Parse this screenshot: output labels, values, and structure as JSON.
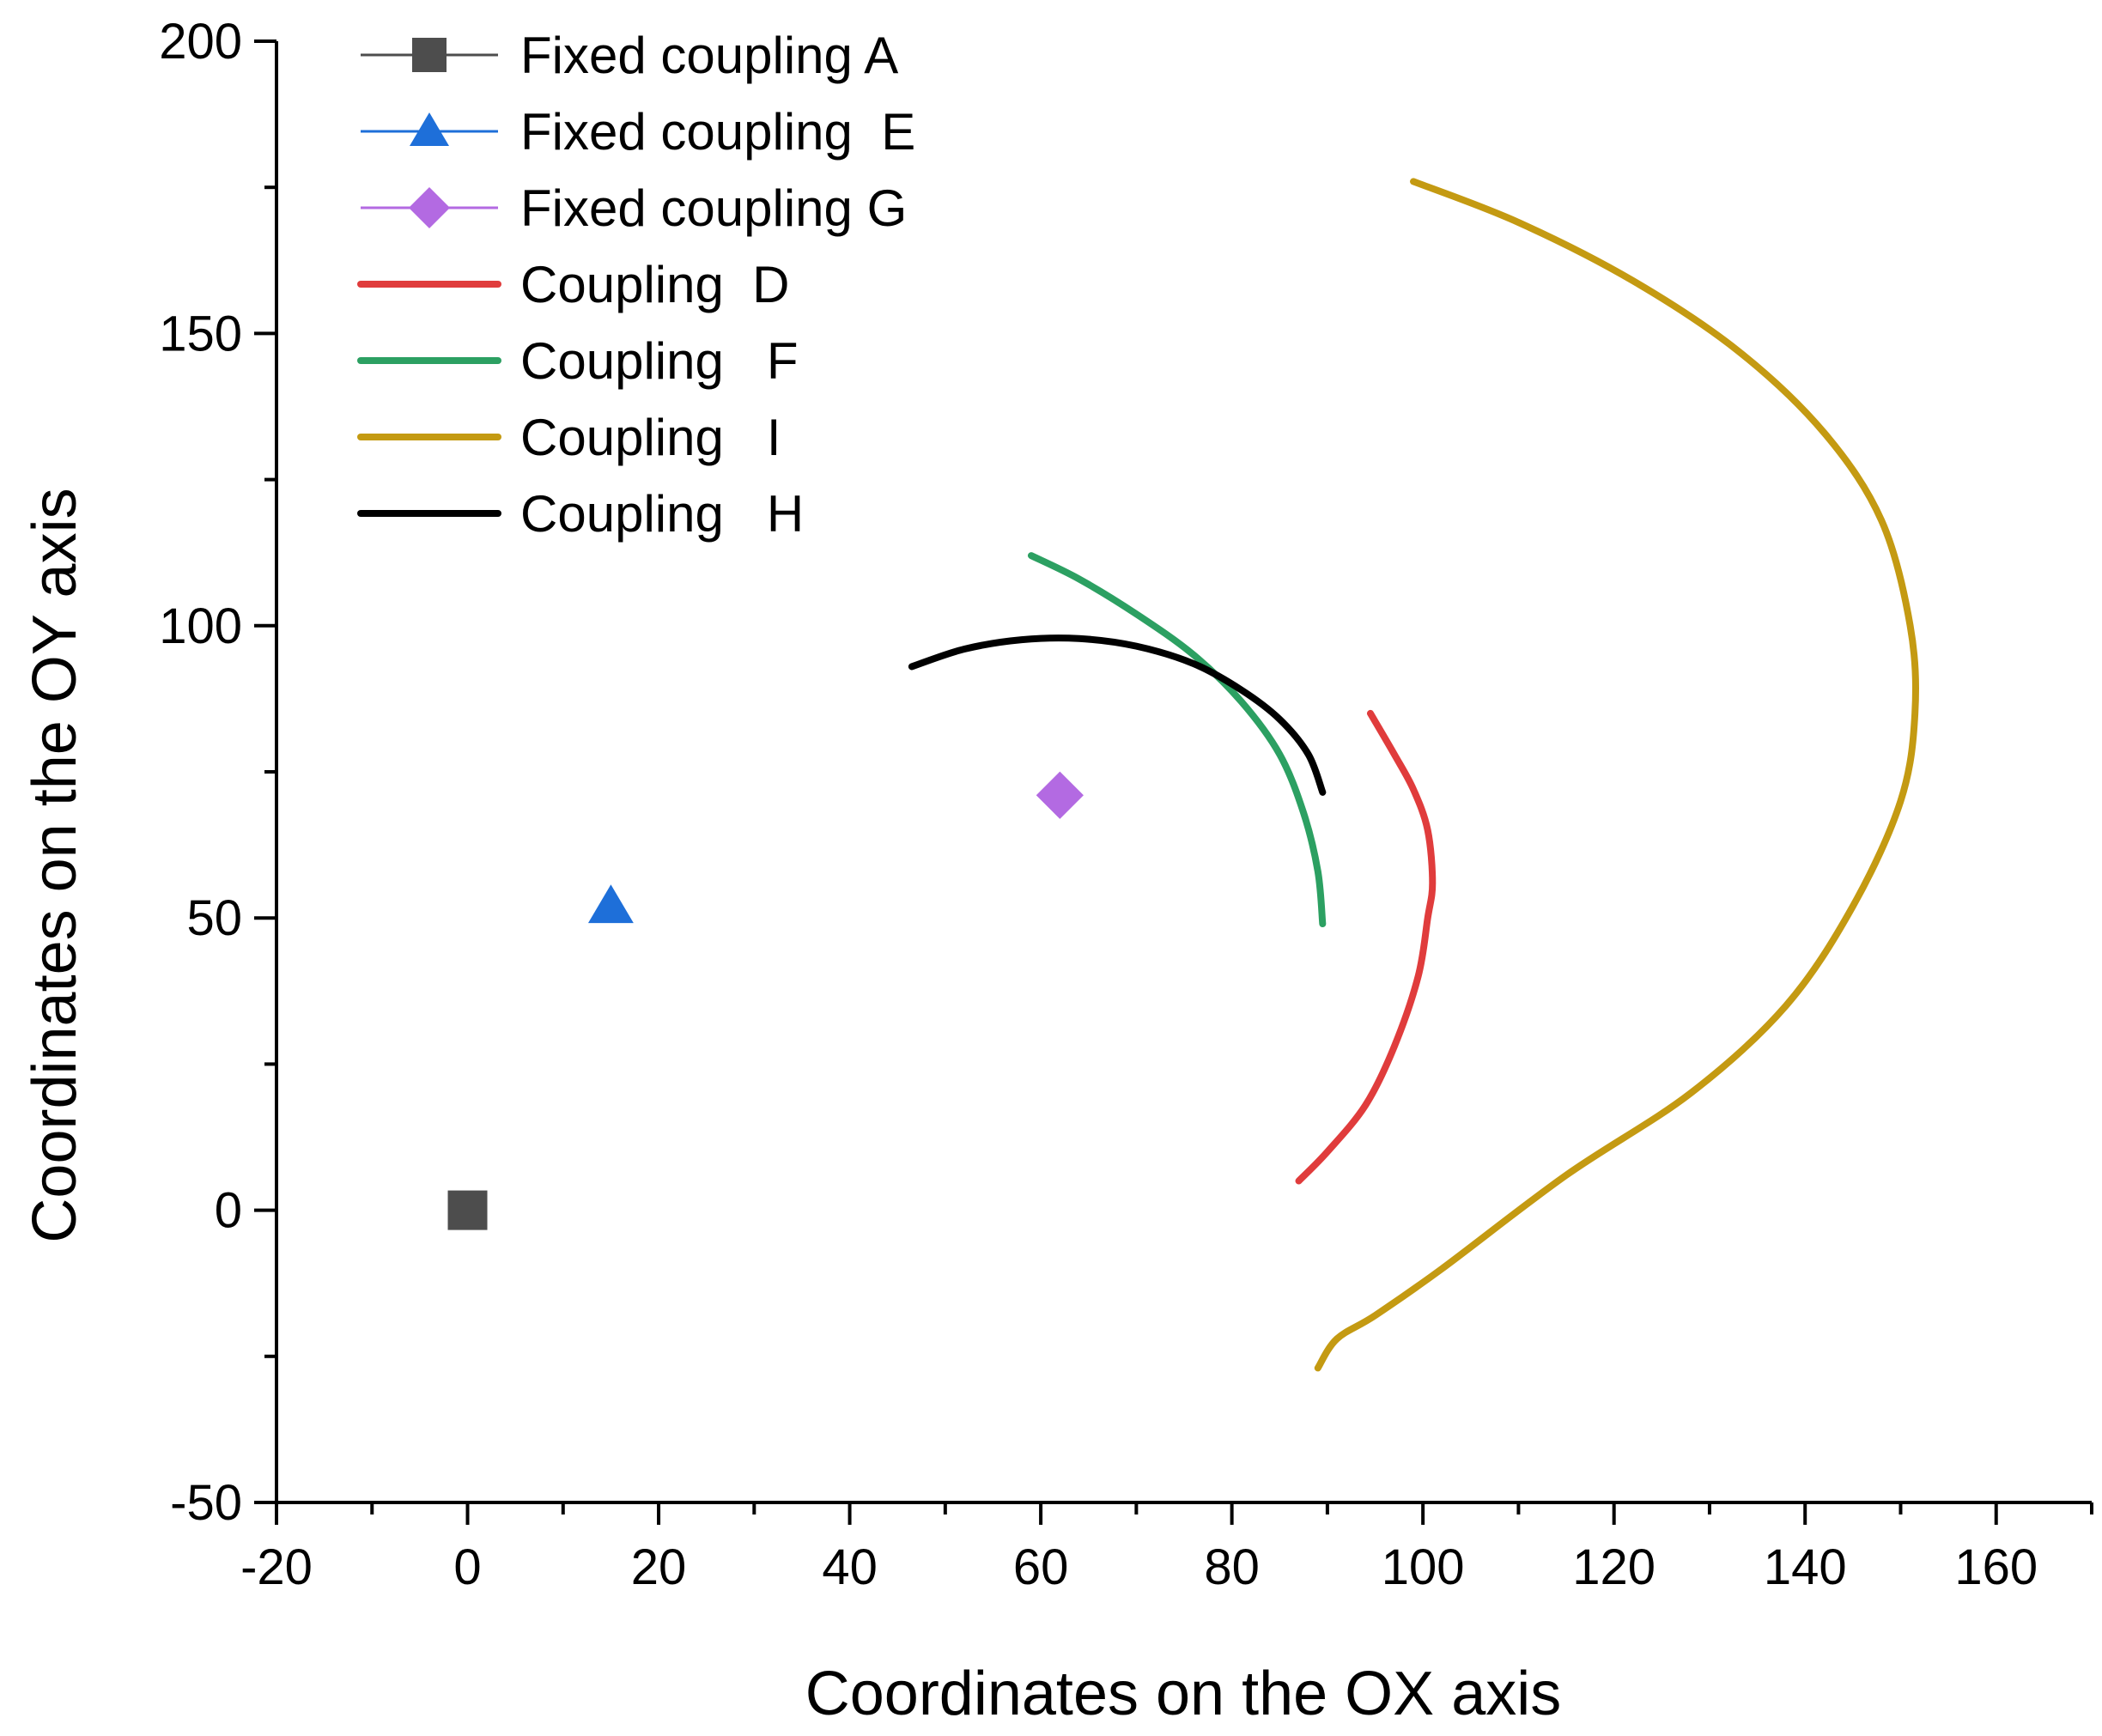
{
  "chart_data": {
    "type": "scatter",
    "xlabel": "Coordinates on the OX axis",
    "ylabel": "Coordinates on the OY axis",
    "xlim": [
      -20,
      170
    ],
    "ylim": [
      -50,
      200
    ],
    "xticks": [
      -20,
      0,
      20,
      40,
      60,
      80,
      100,
      120,
      140,
      160
    ],
    "yticks": [
      -50,
      0,
      50,
      100,
      150,
      200
    ],
    "xtick_labels": [
      "-20",
      "0",
      "20",
      "40",
      "60",
      "80",
      "100",
      "120",
      "140",
      "160"
    ],
    "ytick_labels": [
      "-50",
      "0",
      "50",
      "100",
      "150",
      "200"
    ],
    "grid": false,
    "legend_position": "top-left",
    "series": [
      {
        "name": "Fixed coupling A",
        "kind": "point",
        "marker": "square",
        "color": "#4d4d4d",
        "x": [
          0
        ],
        "y": [
          0
        ]
      },
      {
        "name": "Fixed coupling  E",
        "kind": "point",
        "marker": "triangle",
        "color": "#1e6fd9",
        "x": [
          15
        ],
        "y": [
          52
        ]
      },
      {
        "name": "Fixed coupling G",
        "kind": "point",
        "marker": "diamond",
        "color": "#b36ae2",
        "x": [
          62
        ],
        "y": [
          71
        ]
      },
      {
        "name": "Coupling  D",
        "kind": "line",
        "color": "#e03c3c",
        "x": [
          87,
          90,
          94,
          97,
          99.5,
          100.5,
          101,
          100.5,
          99,
          97,
          94.5
        ],
        "y": [
          5,
          10,
          18,
          28,
          40,
          50,
          56,
          65,
          72,
          78,
          85
        ]
      },
      {
        "name": "Coupling   F",
        "kind": "line",
        "color": "#2ca062",
        "x": [
          59,
          64,
          70,
          76,
          81,
          85,
          87.5,
          89,
          89.5
        ],
        "y": [
          112,
          108,
          102,
          95,
          87,
          78,
          68,
          58,
          49
        ]
      },
      {
        "name": "Coupling   I",
        "kind": "line",
        "color": "#c49a12",
        "x": [
          99,
          110,
          122,
          133,
          142,
          148,
          151,
          151.5,
          150,
          145,
          138,
          128,
          115,
          102,
          95,
          91,
          89
        ],
        "y": [
          176,
          169,
          159,
          147,
          133,
          118,
          100,
          85,
          70,
          52,
          35,
          20,
          6,
          -10,
          -18,
          -22,
          -27
        ]
      },
      {
        "name": "Coupling   H",
        "kind": "line",
        "color": "#000000",
        "x": [
          46.5,
          52,
          58,
          64,
          70,
          76,
          81,
          85,
          88,
          89.5
        ],
        "y": [
          93,
          96,
          97.6,
          97.8,
          96.5,
          93.5,
          89,
          84,
          78,
          71.5
        ]
      }
    ]
  }
}
